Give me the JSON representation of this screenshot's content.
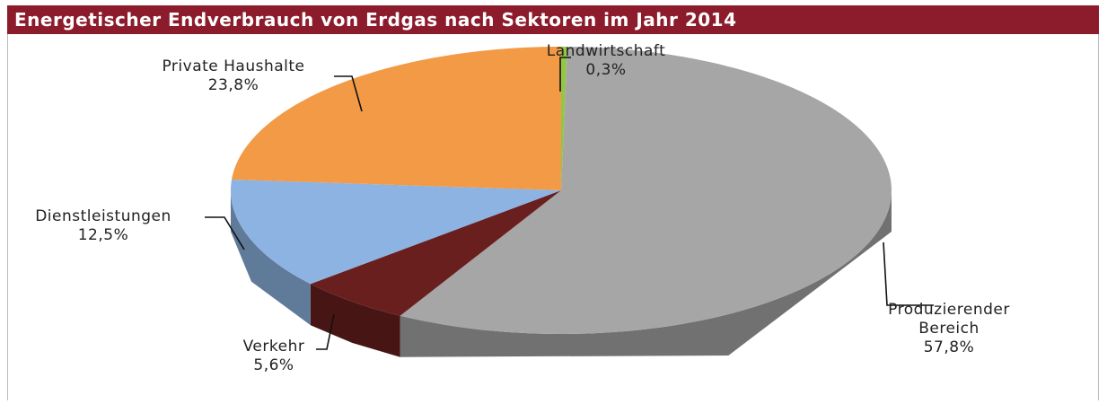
{
  "chart_data": {
    "type": "pie",
    "title": "Energetischer Endverbrauch von Erdgas nach Sektoren im Jahr 2014",
    "categories": [
      "Landwirtschaft",
      "Produzierender Bereich",
      "Verkehr",
      "Dienstleistungen",
      "Private Haushalte"
    ],
    "values": [
      0.3,
      57.8,
      5.6,
      12.5,
      23.8
    ],
    "value_labels": [
      "0,3%",
      "57,8%",
      "5,6%",
      "12,5%",
      "23,8%"
    ],
    "colors": [
      "#92c647",
      "#a6a6a6",
      "#6a1f1f",
      "#8db3e2",
      "#f29a45"
    ]
  }
}
